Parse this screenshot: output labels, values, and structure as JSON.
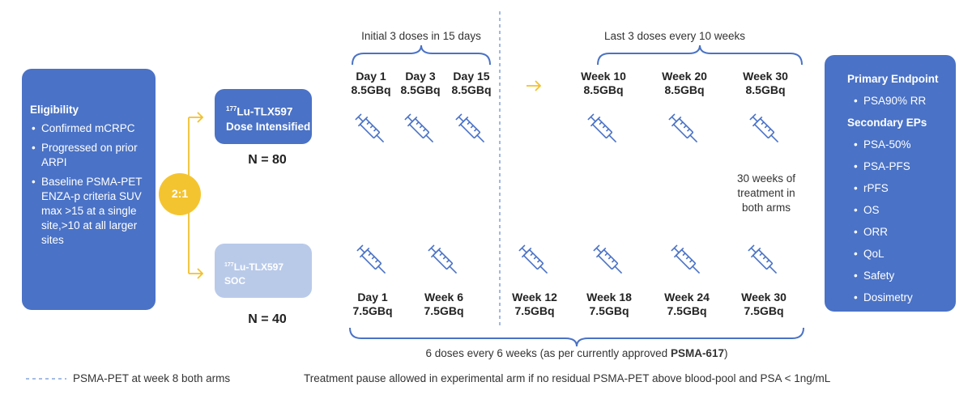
{
  "eligibility": {
    "title": "Eligibility",
    "items": [
      "Confirmed mCRPC",
      "Progressed on prior ARPI",
      "Baseline PSMA-PET ENZA-p criteria SUV max >15 at a single site,>10 at all larger sites"
    ]
  },
  "randomization": "2:1",
  "arms": [
    {
      "isotope": "177",
      "name": "Lu-TLX597",
      "subtitle": "Dose Intensified",
      "n": "N = 80"
    },
    {
      "isotope": "177",
      "name": "Lu-TLX597",
      "subtitle": "SOC",
      "n": "N = 40"
    }
  ],
  "braces": {
    "initial": "Initial 3 doses in 15 days",
    "last": "Last 3 doses every 10 weeks",
    "bottom": [
      "6 doses every 6 weeks (as per currently approved ",
      "PSMA-617",
      ")"
    ]
  },
  "arm1_doses": [
    {
      "time": "Day 1",
      "dose": "8.5GBq"
    },
    {
      "time": "Day 3",
      "dose": "8.5GBq"
    },
    {
      "time": "Day 15",
      "dose": "8.5GBq"
    },
    {
      "time": "Week 10",
      "dose": "8.5GBq"
    },
    {
      "time": "Week 20",
      "dose": "8.5GBq"
    },
    {
      "time": "Week 30",
      "dose": "8.5GBq"
    }
  ],
  "arm2_doses": [
    {
      "time": "Day 1",
      "dose": "7.5GBq"
    },
    {
      "time": "Week 6",
      "dose": "7.5GBq"
    },
    {
      "time": "Week 12",
      "dose": "7.5GBq"
    },
    {
      "time": "Week 18",
      "dose": "7.5GBq"
    },
    {
      "time": "Week 24",
      "dose": "7.5GBq"
    },
    {
      "time": "Week 30",
      "dose": "7.5GBq"
    }
  ],
  "side_note": "30 weeks of treatment in both arms",
  "endpoints": {
    "primary_title": "Primary Endpoint",
    "primary": [
      "PSA90% RR"
    ],
    "secondary_title": "Secondary EPs",
    "secondary": [
      "PSA-50%",
      "PSA-PFS",
      "rPFS",
      "OS",
      "ORR",
      "QoL",
      "Safety",
      "Dosimetry"
    ]
  },
  "footer": {
    "legend": "PSMA-PET at week 8 both arms",
    "note": "Treatment pause allowed in experimental arm if no residual PSMA-PET above blood-pool and PSA < 1ng/mL"
  }
}
